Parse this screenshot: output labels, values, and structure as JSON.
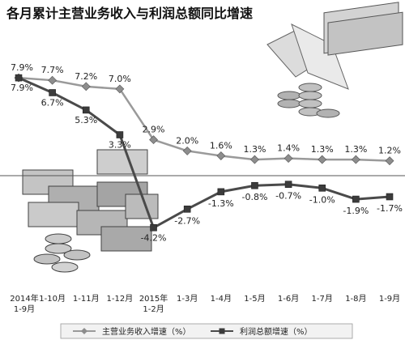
{
  "chart_data": {
    "type": "line",
    "title": "各月累计主营业务收入与利润总额同比增速",
    "categories": [
      [
        "2014年",
        "1-9月"
      ],
      [
        "1-10月"
      ],
      [
        "1-11月"
      ],
      [
        "1-12月"
      ],
      [
        "2015年",
        "1-2月"
      ],
      [
        "1-3月"
      ],
      [
        "1-4月"
      ],
      [
        "1-5月"
      ],
      [
        "1-6月"
      ],
      [
        "1-7月"
      ],
      [
        "1-8月"
      ],
      [
        "1-9月"
      ]
    ],
    "series": [
      {
        "name": "主营业务收入增速（%）",
        "marker": "diamond",
        "values": [
          7.9,
          7.7,
          7.2,
          7.0,
          2.9,
          2.0,
          1.6,
          1.3,
          1.4,
          1.3,
          1.3,
          1.2
        ],
        "labels": [
          "7.9%",
          "7.7%",
          "7.2%",
          "7.0%",
          "2.9%",
          "2.0%",
          "1.6%",
          "1.3%",
          "1.4%",
          "1.3%",
          "1.3%",
          "1.2%"
        ]
      },
      {
        "name": "利润总额增速（%）",
        "marker": "square",
        "values": [
          7.9,
          6.7,
          5.3,
          3.3,
          -4.2,
          -2.7,
          -1.3,
          -0.8,
          -0.7,
          -1.0,
          -1.9,
          -1.7
        ],
        "labels": [
          "7.9%",
          "6.7%",
          "5.3%",
          "3.3%",
          "-4.2%",
          "-2.7%",
          "-1.3%",
          "-0.8%",
          "-0.7%",
          "-1.0%",
          "-1.9%",
          "-1.7%"
        ]
      }
    ],
    "legend_position": "bottom",
    "colors": {
      "revenue": "#9a9a9a",
      "profit": "#4a4a4a"
    }
  }
}
